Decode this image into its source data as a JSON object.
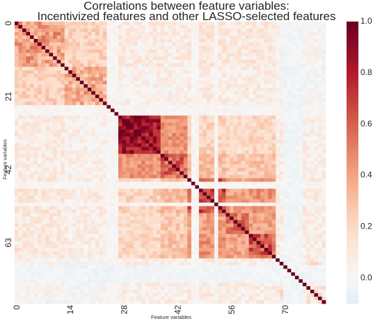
{
  "chart_data": {
    "type": "heatmap",
    "title_lines": [
      "Correlations between feature variables:",
      "Incentivized features and other LASSO-selected features"
    ],
    "xlabel": "Feature variables",
    "ylabel": "Feature variables",
    "n_features": 81,
    "x_tick_labels": [
      "0",
      "14",
      "28",
      "42",
      "56",
      "70"
    ],
    "y_tick_labels": [
      "0",
      "21",
      "42",
      "63"
    ],
    "colorbar_ticks": [
      "0.0",
      "0.2",
      "0.4",
      "0.6",
      "0.8",
      "1.0"
    ],
    "vmin": -0.1,
    "vmax": 1.0,
    "colormap": "RdBu_r",
    "blocks": [
      {
        "from": 0,
        "to": 13,
        "within": 0.4
      },
      {
        "from": 13,
        "to": 24,
        "within": 0.36
      },
      {
        "from": 27,
        "to": 38,
        "within": 0.86
      },
      {
        "from": 38,
        "to": 45,
        "within": 0.58
      },
      {
        "from": 45,
        "to": 55,
        "within": 0.68
      },
      {
        "from": 55,
        "to": 61,
        "within": 0.55
      },
      {
        "from": 61,
        "to": 68,
        "within": 0.62
      },
      {
        "from": 68,
        "to": 81,
        "within": 0.08
      }
    ],
    "grid": false
  }
}
